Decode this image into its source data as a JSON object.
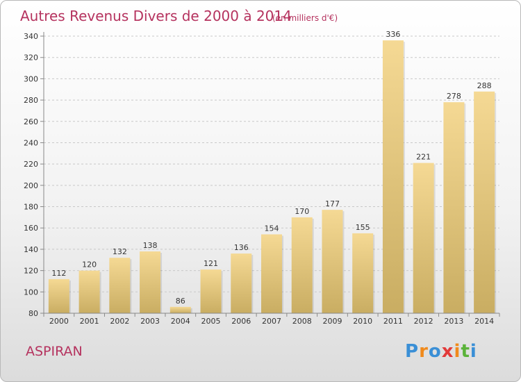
{
  "chart_data": {
    "type": "bar",
    "title": "Autres Revenus Divers de 2000 à 2014",
    "subtitle": "(en milliers d'€)",
    "categories": [
      "2000",
      "2001",
      "2002",
      "2003",
      "2004",
      "2005",
      "2006",
      "2007",
      "2008",
      "2009",
      "2010",
      "2011",
      "2012",
      "2013",
      "2014"
    ],
    "values": [
      112,
      120,
      132,
      138,
      86,
      121,
      136,
      154,
      170,
      177,
      155,
      336,
      221,
      278,
      288
    ],
    "ylim": [
      80,
      340
    ],
    "yticks": [
      80,
      100,
      120,
      140,
      160,
      180,
      200,
      220,
      240,
      260,
      280,
      300,
      320,
      340
    ],
    "grid": "horizontal dashed",
    "bar_color_top": "#f5d994",
    "bar_color_bottom": "#c9ad62"
  },
  "place": "ASPIRAN",
  "logo": {
    "letters": [
      "P",
      "r",
      "o",
      "x",
      "i",
      "t",
      "i"
    ],
    "colors": [
      "#3a8fd6",
      "#f08a1c",
      "#3a8fd6",
      "#e23a3a",
      "#f08a1c",
      "#5bb33a",
      "#3a8fd6"
    ]
  }
}
